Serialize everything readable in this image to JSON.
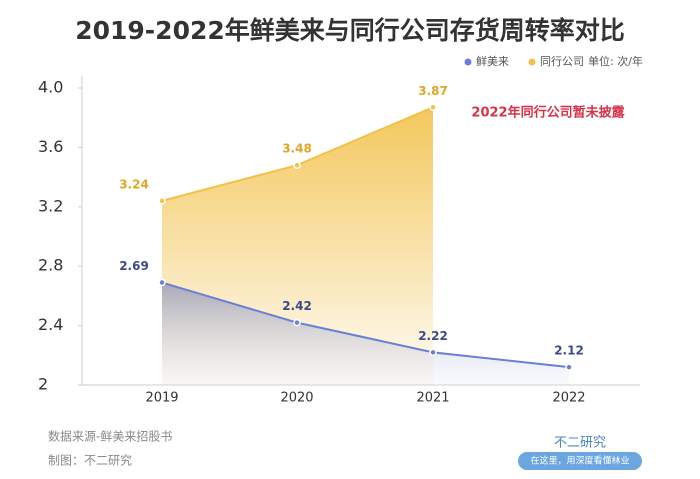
{
  "chart_data": {
    "type": "line",
    "title": "2019-2022年鲜美来与同行公司存货周转率对比",
    "unit": "单位: 次/年",
    "annotation": "2022年同行公司暂未披露",
    "source": "数据来源-鲜美来招股书",
    "credit": "制图：不二研究",
    "brand": "不二研究",
    "slogan": "在这里，用深度看懂林业",
    "categories": [
      "2019",
      "2020",
      "2021",
      "2022"
    ],
    "series": [
      {
        "name": "鲜美来",
        "color": "#6a7fd6",
        "values": [
          2.69,
          2.42,
          2.22,
          2.12
        ]
      },
      {
        "name": "同行公司",
        "color": "#f2c14a",
        "values": [
          3.24,
          3.48,
          3.87,
          null
        ]
      }
    ],
    "ylim": [
      2,
      4
    ],
    "yticks": [
      2,
      2.4,
      2.8,
      3.2,
      3.6,
      {
        "value": 4,
        "label": "4.0"
      }
    ]
  }
}
